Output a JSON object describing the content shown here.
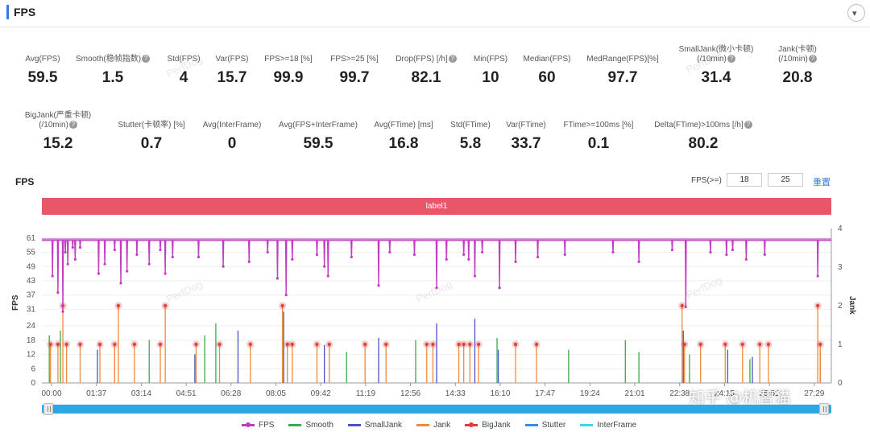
{
  "header": {
    "title": "FPS",
    "collapse_icon": "▾"
  },
  "metrics_row1": [
    {
      "label": "Avg(FPS)",
      "value": "59.5",
      "help": false
    },
    {
      "label": "Smooth(稳帧指数)",
      "value": "1.5",
      "help": true
    },
    {
      "label": "Std(FPS)",
      "value": "4",
      "help": false
    },
    {
      "label": "Var(FPS)",
      "value": "15.7",
      "help": false
    },
    {
      "label": "FPS>=18 [%]",
      "value": "99.9",
      "help": false
    },
    {
      "label": "FPS>=25 [%]",
      "value": "99.7",
      "help": false
    },
    {
      "label": "Drop(FPS) [/h]",
      "value": "82.1",
      "help": true
    },
    {
      "label": "Min(FPS)",
      "value": "10",
      "help": false
    },
    {
      "label": "Median(FPS)",
      "value": "60",
      "help": false
    },
    {
      "label": "MedRange(FPS)[%]",
      "value": "97.7",
      "help": false
    },
    {
      "label": "SmallJank(微小卡顿)",
      "label2": "(/10min)",
      "value": "31.4",
      "help": true
    },
    {
      "label": "Jank(卡顿)",
      "label2": "(/10min)",
      "value": "20.8",
      "help": true
    }
  ],
  "metrics_row2": [
    {
      "label": "BigJank(严重卡顿)",
      "label2": "(/10min)",
      "value": "15.2",
      "help": true
    },
    {
      "label": "Stutter(卡顿率) [%]",
      "value": "0.7",
      "help": false
    },
    {
      "label": "Avg(InterFrame)",
      "value": "0",
      "help": false
    },
    {
      "label": "Avg(FPS+InterFrame)",
      "value": "59.5",
      "help": false
    },
    {
      "label": "Avg(FTime) [ms]",
      "value": "16.8",
      "help": false
    },
    {
      "label": "Std(FTime)",
      "value": "5.8",
      "help": false
    },
    {
      "label": "Var(FTime)",
      "value": "33.7",
      "help": false
    },
    {
      "label": "FTime>=100ms [%]",
      "value": "0.1",
      "help": false
    },
    {
      "label": "Delta(FTime)>100ms [/h]",
      "value": "80.2",
      "help": true
    }
  ],
  "chart_controls": {
    "title": "FPS",
    "threshold_label": "FPS(>=)",
    "threshold1": "18",
    "threshold2": "25",
    "reset_label": "重置",
    "band_label": "label1"
  },
  "watermark_text": "PerfDog",
  "brand_text": "知乎 @机智猫",
  "colors": {
    "fps": "#c23cc2",
    "smooth": "#3aaa4a",
    "smalljank": "#4a52c8",
    "jank": "#f08a3a",
    "bigjank": "#e03a3a",
    "stutter": "#3a8ae8",
    "interframe": "#3ad8e8",
    "band": "#e8566a",
    "scrollbar": "#2aa8e6"
  },
  "chart_data": {
    "type": "line",
    "ylabel": "FPS",
    "y2label": "Jank",
    "y_ticks": [
      0,
      6,
      12,
      18,
      24,
      31,
      37,
      43,
      49,
      55,
      61
    ],
    "y2_ticks": [
      0,
      1,
      2,
      3,
      4
    ],
    "ylim": [
      0,
      65
    ],
    "y2lim": [
      0,
      4
    ],
    "x_ticks": [
      "00:00",
      "01:37",
      "03:14",
      "04:51",
      "06:28",
      "08:05",
      "09:42",
      "11:19",
      "12:56",
      "14:33",
      "16:10",
      "17:47",
      "19:24",
      "21:01",
      "22:38",
      "24:15",
      "25:52",
      "27:29"
    ],
    "fps_baseline": 60,
    "fps_dips": [
      {
        "t": 0.43,
        "fps": 45
      },
      {
        "t": 0.65,
        "fps": 38
      },
      {
        "t": 0.85,
        "fps": 30
      },
      {
        "t": 0.95,
        "fps": 55
      },
      {
        "t": 1.05,
        "fps": 50
      },
      {
        "t": 1.25,
        "fps": 57
      },
      {
        "t": 1.35,
        "fps": 52
      },
      {
        "t": 1.55,
        "fps": 57
      },
      {
        "t": 2.3,
        "fps": 46
      },
      {
        "t": 2.55,
        "fps": 50
      },
      {
        "t": 2.95,
        "fps": 56
      },
      {
        "t": 3.2,
        "fps": 42
      },
      {
        "t": 3.45,
        "fps": 47
      },
      {
        "t": 3.85,
        "fps": 54
      },
      {
        "t": 4.35,
        "fps": 50
      },
      {
        "t": 4.8,
        "fps": 56
      },
      {
        "t": 5.0,
        "fps": 46
      },
      {
        "t": 5.3,
        "fps": 53
      },
      {
        "t": 6.35,
        "fps": 53
      },
      {
        "t": 7.35,
        "fps": 49
      },
      {
        "t": 8.4,
        "fps": 51
      },
      {
        "t": 9.15,
        "fps": 55
      },
      {
        "t": 9.55,
        "fps": 44
      },
      {
        "t": 9.9,
        "fps": 37
      },
      {
        "t": 10.15,
        "fps": 52
      },
      {
        "t": 11.15,
        "fps": 54
      },
      {
        "t": 11.45,
        "fps": 49
      },
      {
        "t": 11.6,
        "fps": 45
      },
      {
        "t": 12.55,
        "fps": 53
      },
      {
        "t": 13.65,
        "fps": 41
      },
      {
        "t": 14.1,
        "fps": 55
      },
      {
        "t": 15.1,
        "fps": 54
      },
      {
        "t": 16.0,
        "fps": 40
      },
      {
        "t": 16.4,
        "fps": 52
      },
      {
        "t": 17.1,
        "fps": 54
      },
      {
        "t": 17.3,
        "fps": 52
      },
      {
        "t": 17.55,
        "fps": 45
      },
      {
        "t": 17.85,
        "fps": 55
      },
      {
        "t": 18.55,
        "fps": 40
      },
      {
        "t": 19.2,
        "fps": 51
      },
      {
        "t": 20.1,
        "fps": 53
      },
      {
        "t": 21.2,
        "fps": 54
      },
      {
        "t": 23.15,
        "fps": 55
      },
      {
        "t": 24.2,
        "fps": 51
      },
      {
        "t": 25.55,
        "fps": 56
      },
      {
        "t": 26.1,
        "fps": 32
      },
      {
        "t": 27.1,
        "fps": 55
      },
      {
        "t": 27.75,
        "fps": 54
      },
      {
        "t": 28.0,
        "fps": 56
      },
      {
        "t": 28.55,
        "fps": 52
      },
      {
        "t": 29.3,
        "fps": 54
      },
      {
        "t": 31.45,
        "fps": 45
      }
    ],
    "jank_markers": [
      {
        "t": 0.35,
        "level": 1
      },
      {
        "t": 0.65,
        "level": 1
      },
      {
        "t": 0.85,
        "level": 2
      },
      {
        "t": 1.0,
        "level": 1
      },
      {
        "t": 1.55,
        "level": 1
      },
      {
        "t": 2.35,
        "level": 1
      },
      {
        "t": 2.95,
        "level": 1
      },
      {
        "t": 3.1,
        "level": 2
      },
      {
        "t": 3.75,
        "level": 1
      },
      {
        "t": 4.8,
        "level": 1
      },
      {
        "t": 5.0,
        "level": 2
      },
      {
        "t": 6.25,
        "level": 1
      },
      {
        "t": 7.2,
        "level": 1
      },
      {
        "t": 8.45,
        "level": 1
      },
      {
        "t": 9.75,
        "level": 2
      },
      {
        "t": 9.95,
        "level": 1
      },
      {
        "t": 10.15,
        "level": 1
      },
      {
        "t": 11.15,
        "level": 1
      },
      {
        "t": 11.65,
        "level": 1
      },
      {
        "t": 13.1,
        "level": 1
      },
      {
        "t": 13.95,
        "level": 1
      },
      {
        "t": 15.6,
        "level": 1
      },
      {
        "t": 15.85,
        "level": 1
      },
      {
        "t": 16.9,
        "level": 1
      },
      {
        "t": 17.1,
        "level": 1
      },
      {
        "t": 17.35,
        "level": 1
      },
      {
        "t": 17.7,
        "level": 1
      },
      {
        "t": 19.2,
        "level": 1
      },
      {
        "t": 20.05,
        "level": 1
      },
      {
        "t": 25.95,
        "level": 2
      },
      {
        "t": 26.05,
        "level": 1
      },
      {
        "t": 26.7,
        "level": 1
      },
      {
        "t": 27.7,
        "level": 1
      },
      {
        "t": 28.4,
        "level": 1
      },
      {
        "t": 29.1,
        "level": 1
      },
      {
        "t": 29.45,
        "level": 1
      },
      {
        "t": 31.45,
        "level": 2
      },
      {
        "t": 31.55,
        "level": 1
      }
    ],
    "smalljank_spikes": [
      {
        "t": 2.25,
        "fps": 14
      },
      {
        "t": 6.2,
        "fps": 12
      },
      {
        "t": 7.95,
        "fps": 22
      },
      {
        "t": 9.8,
        "fps": 30
      },
      {
        "t": 11.45,
        "fps": 16
      },
      {
        "t": 13.65,
        "fps": 19
      },
      {
        "t": 16.0,
        "fps": 25
      },
      {
        "t": 17.55,
        "fps": 27
      },
      {
        "t": 18.5,
        "fps": 14
      },
      {
        "t": 26.0,
        "fps": 22
      },
      {
        "t": 27.8,
        "fps": 14
      },
      {
        "t": 28.8,
        "fps": 11
      },
      {
        "t": 31.55,
        "fps": 14
      }
    ],
    "smooth_spikes": [
      {
        "t": 0.3,
        "fps": 20
      },
      {
        "t": 0.75,
        "fps": 22
      },
      {
        "t": 4.35,
        "fps": 18
      },
      {
        "t": 6.6,
        "fps": 20
      },
      {
        "t": 7.05,
        "fps": 25
      },
      {
        "t": 12.35,
        "fps": 13
      },
      {
        "t": 15.15,
        "fps": 18
      },
      {
        "t": 18.45,
        "fps": 19
      },
      {
        "t": 21.35,
        "fps": 14
      },
      {
        "t": 23.65,
        "fps": 18
      },
      {
        "t": 24.2,
        "fps": 13
      },
      {
        "t": 26.25,
        "fps": 12
      },
      {
        "t": 28.7,
        "fps": 10
      }
    ],
    "x_max": 32,
    "legend": [
      "FPS",
      "Smooth",
      "SmallJank",
      "Jank",
      "BigJank",
      "Stutter",
      "InterFrame"
    ]
  }
}
